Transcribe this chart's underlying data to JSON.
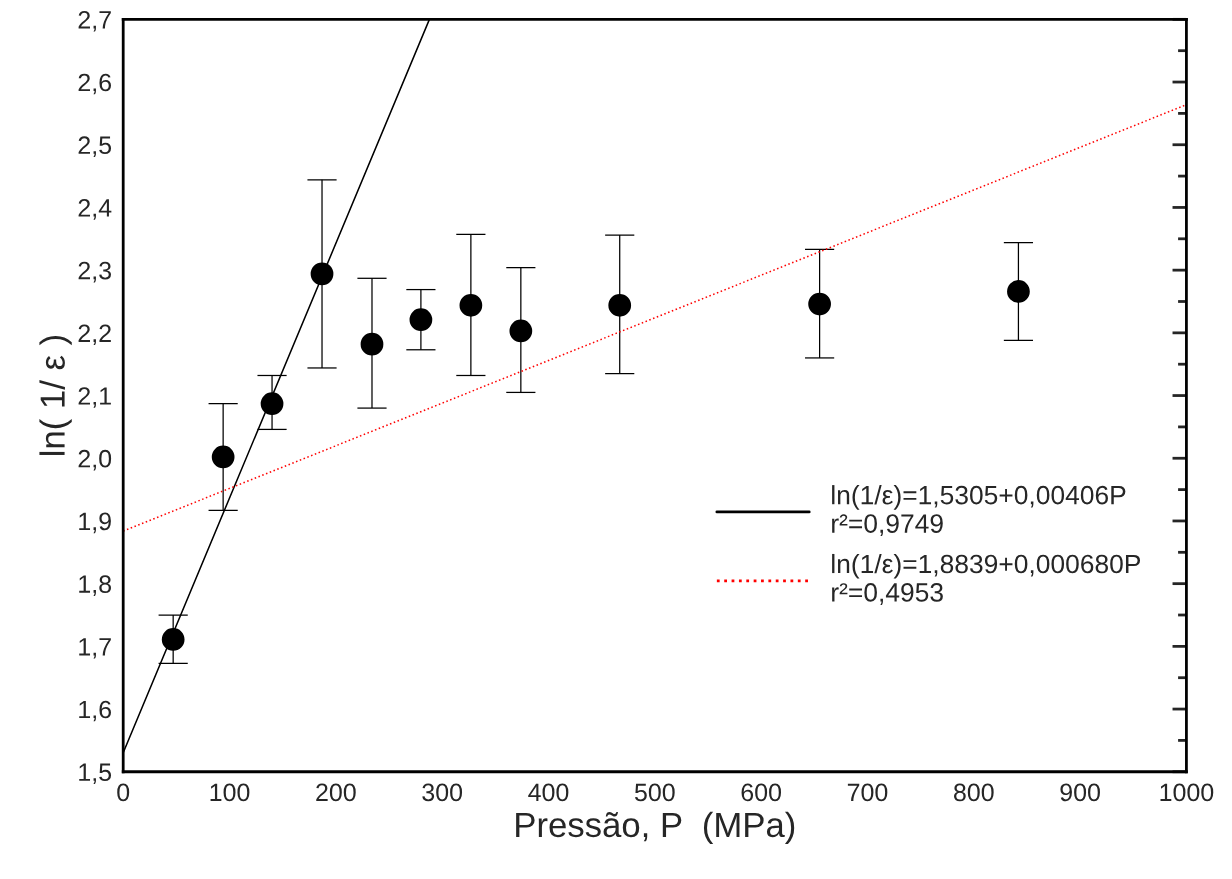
{
  "chart_data": {
    "type": "scatter",
    "xlabel": "Pressão, P  (MPa)",
    "ylabel": "ln( 1/ ε )",
    "xlim": [
      0,
      1000
    ],
    "xticks": [
      0,
      100,
      200,
      300,
      400,
      500,
      600,
      700,
      800,
      900,
      1000
    ],
    "ylim": [
      1.5,
      2.7
    ],
    "yticks": [
      {
        "value": 1.5,
        "label": "1,5"
      },
      {
        "value": 1.6,
        "label": "1,6"
      },
      {
        "value": 1.7,
        "label": "1,7"
      },
      {
        "value": 1.8,
        "label": "1,8"
      },
      {
        "value": 1.9,
        "label": "1,9"
      },
      {
        "value": 2.0,
        "label": "2,0"
      },
      {
        "value": 2.1,
        "label": "2,1"
      },
      {
        "value": 2.2,
        "label": "2,2"
      },
      {
        "value": 2.3,
        "label": "2,3"
      },
      {
        "value": 2.4,
        "label": "2,4"
      },
      {
        "value": 2.5,
        "label": "2,5"
      },
      {
        "value": 2.6,
        "label": "2,6"
      },
      {
        "value": 2.7,
        "label": "2,7"
      }
    ],
    "grid": false,
    "legend": "right",
    "series": [
      {
        "color": "#000000",
        "marker": "circle",
        "x": [
          47,
          94,
          140,
          187,
          234,
          280,
          327,
          374,
          467,
          655,
          842
        ],
        "values": [
          1.711,
          2.002,
          2.087,
          2.294,
          2.182,
          2.221,
          2.244,
          2.203,
          2.244,
          2.246,
          2.266
        ],
        "errors": [
          [
            1.673,
            1.75
          ],
          [
            1.917,
            2.087
          ],
          [
            2.046,
            2.132
          ],
          [
            2.144,
            2.444
          ],
          [
            2.08,
            2.287
          ],
          [
            2.173,
            2.269
          ],
          [
            2.132,
            2.357
          ],
          [
            2.105,
            2.304
          ],
          [
            2.135,
            2.356
          ],
          [
            2.16,
            2.333
          ],
          [
            2.188,
            2.344
          ]
        ]
      },
      {
        "type": "line",
        "name": "ln(1/ε)=1,5305+0,00406P\nr²=0,9749",
        "color": "#000000",
        "line_style": "solid",
        "marker": "none",
        "x": [
          0,
          288
        ],
        "values": [
          1.5305,
          2.7
        ]
      },
      {
        "type": "line",
        "name": "ln(1/ε)=1,8839+0,000680P\nr²=0,4953",
        "color": "#ff0000",
        "line_style": "dotted",
        "marker": "none",
        "x": [
          0,
          1000
        ],
        "values": [
          1.8839,
          2.5639
        ]
      }
    ]
  }
}
